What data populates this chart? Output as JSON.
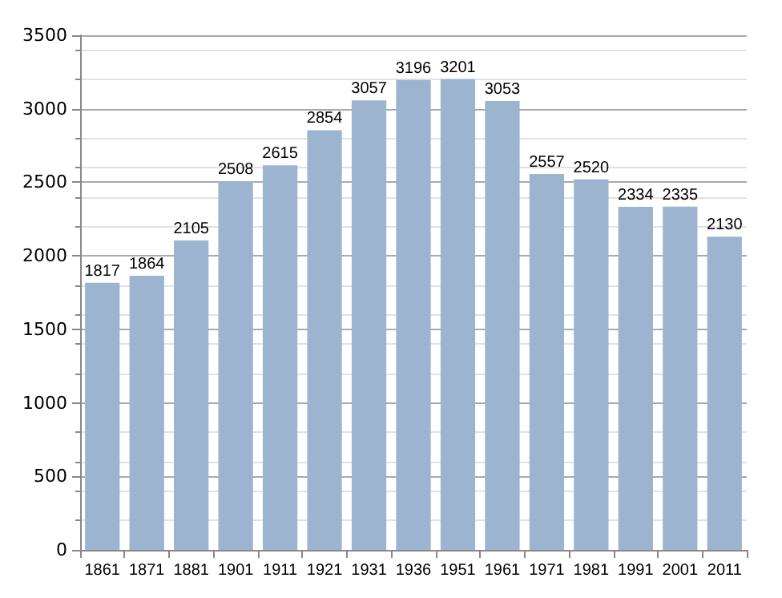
{
  "chart_data": {
    "type": "bar",
    "categories": [
      "1861",
      "1871",
      "1881",
      "1901",
      "1911",
      "1921",
      "1931",
      "1936",
      "1951",
      "1961",
      "1971",
      "1981",
      "1991",
      "2001",
      "2011"
    ],
    "values": [
      1817,
      1864,
      2105,
      2508,
      2615,
      2854,
      3057,
      3196,
      3201,
      3053,
      2557,
      2520,
      2334,
      2335,
      2130
    ],
    "color": "#9cb4cf",
    "ylim": [
      0,
      3500
    ],
    "yticks": [
      0,
      500,
      1000,
      1500,
      2000,
      2500,
      3000,
      3500
    ],
    "grid": "y",
    "data_labels": true
  }
}
